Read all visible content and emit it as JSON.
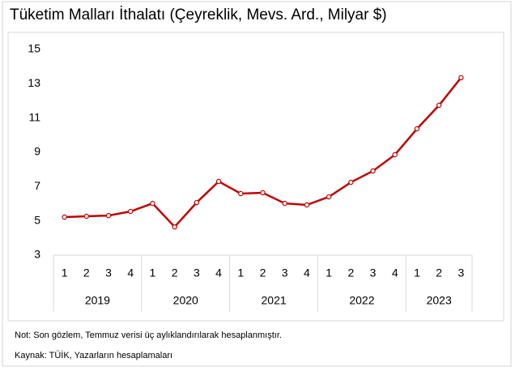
{
  "chart_data": {
    "type": "line",
    "title": "Tüketim Malları İthalatı (Çeyreklik, Mevs. Ard., Milyar $)",
    "groups": [
      {
        "name": "2019",
        "categories": [
          "1",
          "2",
          "3",
          "4"
        ]
      },
      {
        "name": "2020",
        "categories": [
          "1",
          "2",
          "3",
          "4"
        ]
      },
      {
        "name": "2021",
        "categories": [
          "1",
          "2",
          "3",
          "4"
        ]
      },
      {
        "name": "2022",
        "categories": [
          "1",
          "2",
          "3",
          "4"
        ]
      },
      {
        "name": "2023",
        "categories": [
          "1",
          "2",
          "3"
        ]
      }
    ],
    "values": [
      5.22,
      5.27,
      5.31,
      5.55,
      6.02,
      4.65,
      6.07,
      7.3,
      6.59,
      6.64,
      6.02,
      5.93,
      6.4,
      7.25,
      7.91,
      8.86,
      10.37,
      11.74,
      13.35
    ],
    "color": "#c00000",
    "ylim": [
      3,
      15
    ],
    "yticks": [
      3,
      5,
      7,
      9,
      11,
      13,
      15
    ],
    "grid": false,
    "note": "Not: Son gözlem, Temmuz verisi üç aylıklandırılarak hesaplanmıştır.",
    "source": "Kaynak: TÜİK, Yazarların hesaplamaları"
  }
}
